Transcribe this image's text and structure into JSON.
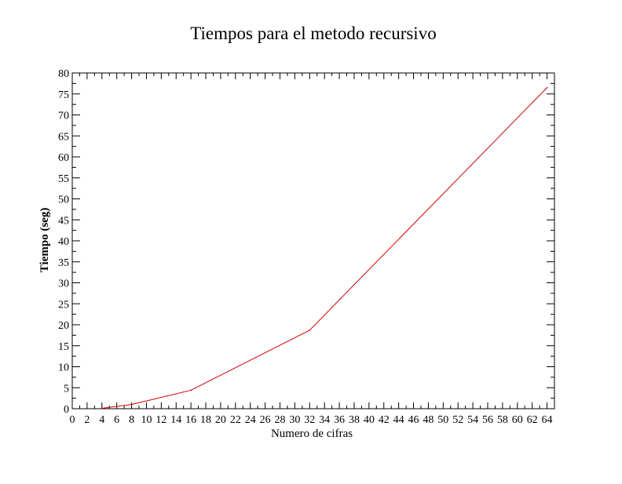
{
  "chart_data": {
    "type": "line",
    "title": "Tiempos para el metodo recursivo",
    "xlabel": "Numero de cifras",
    "ylabel": "Tiempo (seg)",
    "xlim": [
      0,
      65
    ],
    "ylim": [
      0,
      80
    ],
    "x_ticks": [
      "0",
      "2",
      "4",
      "6",
      "8",
      "10",
      "12",
      "14",
      "16",
      "18",
      "20",
      "22",
      "24",
      "26",
      "28",
      "30",
      "32",
      "34",
      "36",
      "38",
      "40",
      "42",
      "44",
      "46",
      "48",
      "50",
      "52",
      "54",
      "56",
      "58",
      "60",
      "62",
      "64"
    ],
    "y_ticks": [
      "0",
      "5",
      "10",
      "15",
      "20",
      "25",
      "30",
      "35",
      "40",
      "45",
      "50",
      "55",
      "60",
      "65",
      "70",
      "75",
      "80"
    ],
    "grid": false,
    "series": [
      {
        "color": "#cc0000",
        "x": [
          4,
          8,
          16,
          32,
          64
        ],
        "y": [
          0.1,
          1.0,
          4.4,
          18.7,
          76.5
        ]
      }
    ]
  }
}
